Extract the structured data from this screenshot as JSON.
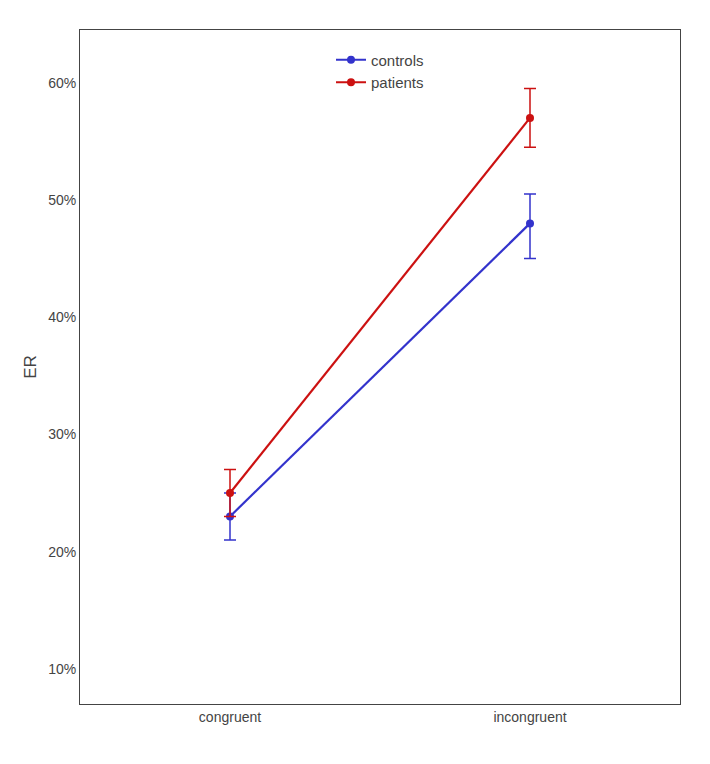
{
  "chart_data": {
    "type": "line",
    "categories": [
      "congruent",
      "incongruent"
    ],
    "ylabel": "ER",
    "series": [
      {
        "name": "controls",
        "color": "#3333cc",
        "marker": "circle",
        "line_style": "solid",
        "values": [
          0.23,
          0.48
        ],
        "error_low": [
          0.02,
          0.03
        ],
        "error_high": [
          0.02,
          0.025
        ]
      },
      {
        "name": "patients",
        "color": "#cc1111",
        "marker": "circle",
        "line_style": "solid",
        "values": [
          0.25,
          0.57
        ],
        "error_low": [
          0.02,
          0.025
        ],
        "error_high": [
          0.02,
          0.025
        ]
      }
    ],
    "ylim": [
      0.07,
      0.645
    ],
    "yticks": [
      {
        "value": 0.1,
        "label": "10%"
      },
      {
        "value": 0.2,
        "label": "20%"
      },
      {
        "value": 0.3,
        "label": "30%"
      },
      {
        "value": 0.4,
        "label": "40%"
      },
      {
        "value": 0.5,
        "label": "50%"
      },
      {
        "value": 0.6,
        "label": "60%"
      }
    ],
    "grid": false,
    "legend": "upper center"
  }
}
